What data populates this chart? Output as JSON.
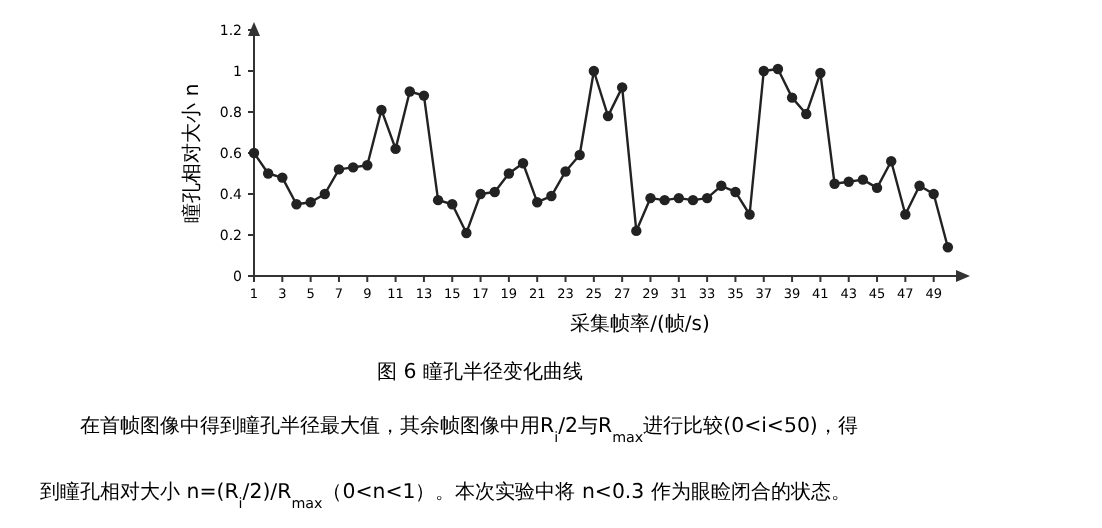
{
  "chart_data": {
    "type": "line",
    "xlabel": "采集帧率/(帧/s)",
    "ylabel": "瞳孔相对大小 n",
    "x": [
      1,
      2,
      3,
      4,
      5,
      6,
      7,
      8,
      9,
      10,
      11,
      12,
      13,
      14,
      15,
      16,
      17,
      18,
      19,
      20,
      21,
      22,
      23,
      24,
      25,
      26,
      27,
      28,
      29,
      30,
      31,
      32,
      33,
      34,
      35,
      36,
      37,
      38,
      39,
      40,
      41,
      42,
      43,
      44,
      45,
      46,
      47,
      48,
      49,
      50
    ],
    "series": [
      {
        "color": "#222222",
        "values": [
          0.6,
          0.5,
          0.48,
          0.35,
          0.36,
          0.4,
          0.52,
          0.53,
          0.54,
          0.81,
          0.62,
          0.9,
          0.88,
          0.37,
          0.35,
          0.21,
          0.4,
          0.41,
          0.5,
          0.55,
          0.36,
          0.39,
          0.51,
          0.59,
          1.0,
          0.78,
          0.92,
          0.22,
          0.38,
          0.37,
          0.38,
          0.37,
          0.38,
          0.44,
          0.41,
          0.3,
          1.0,
          1.01,
          0.87,
          0.79,
          0.99,
          0.45,
          0.46,
          0.47,
          0.43,
          0.56,
          0.3,
          0.44,
          0.4,
          0.14
        ]
      }
    ],
    "xlim": [
      1,
      51
    ],
    "xticks": [
      1,
      3,
      5,
      7,
      9,
      11,
      13,
      15,
      17,
      19,
      21,
      23,
      25,
      27,
      29,
      31,
      33,
      35,
      37,
      39,
      41,
      43,
      45,
      47,
      49
    ],
    "ylim": [
      0,
      1.2
    ],
    "yticks": [
      0,
      0.2,
      0.4,
      0.6,
      0.8,
      1,
      1.2
    ],
    "marker": "circle",
    "line_style": "solid",
    "grid": false,
    "annotations": [
      "图 6 瞳孔半径变化曲线",
      "在首帧图像中得到瞳孔半径最大值，其余帧图像中用R$_{i}$/2与R$_{max}$进行比较(0<i<50)，得",
      "到瞳孔相对大小 n=(R$_{i}$/2)/R$_{max}$（0<n<1）。本次实验中将 n<0.3 作为眼睑闭合的状态。"
    ]
  }
}
